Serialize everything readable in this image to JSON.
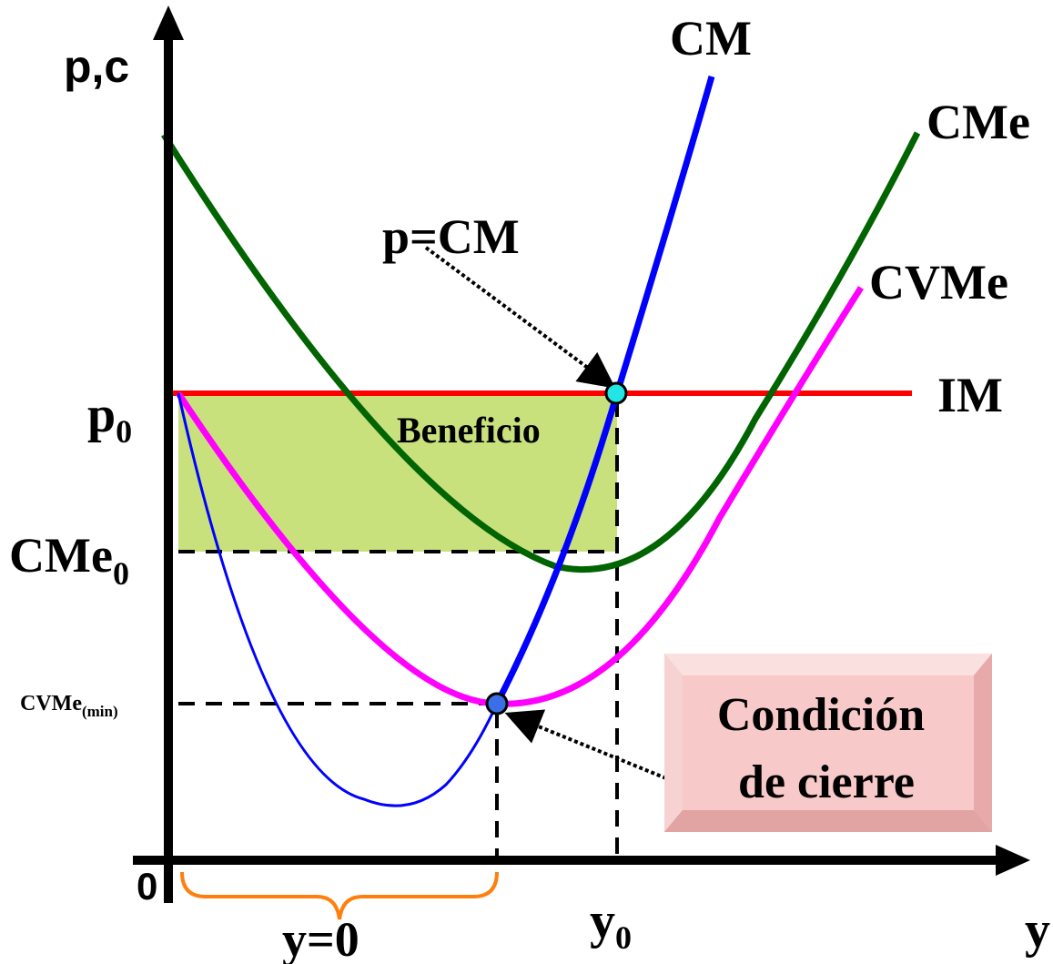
{
  "axes": {
    "y_label": "p,c",
    "x_label": "y",
    "origin_label": "0"
  },
  "curve_labels": {
    "cm": "CM",
    "cme": "CMe",
    "cvme": "CVMe",
    "im": "IM"
  },
  "axis_ticks": {
    "p0_main": "p",
    "p0_sub": "0",
    "cme0_main": "CMe",
    "cme0_sub": "0",
    "cvme_min_main": "CVMe",
    "cvme_min_sub": "(min)",
    "y0_main": "y",
    "y0_sub": "0"
  },
  "annotations": {
    "p_equals_cm": "p=CM",
    "beneficio": "Beneficio",
    "y_zero": "y=0",
    "condicion_line1": "Condición",
    "condicion_line2": "de cierre"
  },
  "colors": {
    "axis": "#000000",
    "cm": "#0000ff",
    "cme": "#006400",
    "cvme": "#ff00ff",
    "im": "#ff0000",
    "profit_area": "#c8e17d",
    "brace": "#ff7f0e",
    "point_equilibrium": "#22e5e5",
    "point_shutdown": "#3b6fe8",
    "condition_box": "#f8c9c9"
  }
}
